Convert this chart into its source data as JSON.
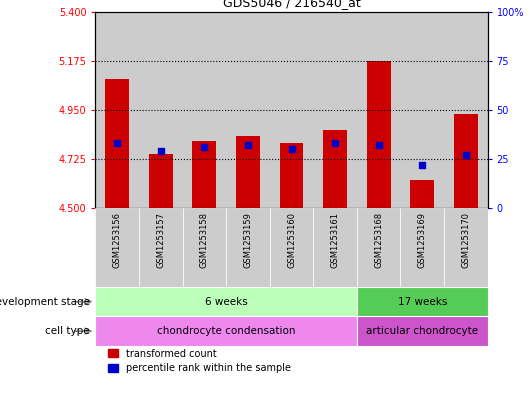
{
  "title": "GDS5046 / 216540_at",
  "samples": [
    "GSM1253156",
    "GSM1253157",
    "GSM1253158",
    "GSM1253159",
    "GSM1253160",
    "GSM1253161",
    "GSM1253168",
    "GSM1253169",
    "GSM1253170"
  ],
  "transformed_count": [
    5.09,
    4.75,
    4.81,
    4.83,
    4.8,
    4.86,
    5.175,
    4.63,
    4.93
  ],
  "percentile_rank": [
    33,
    29,
    31,
    32,
    30,
    33,
    32,
    22,
    27
  ],
  "ylim_left": [
    4.5,
    5.4
  ],
  "ylim_right": [
    0,
    100
  ],
  "yticks_left": [
    4.5,
    4.725,
    4.95,
    5.175,
    5.4
  ],
  "yticks_right": [
    0,
    25,
    50,
    75,
    100
  ],
  "ytick_labels_right": [
    "0",
    "25",
    "50",
    "75",
    "100%"
  ],
  "hlines": [
    4.725,
    4.95,
    5.175
  ],
  "bar_color": "#cc0000",
  "dot_color": "#0000cc",
  "bar_bottom": 4.5,
  "development_stage_groups": [
    {
      "label": "6 weeks",
      "start": 0,
      "end": 6,
      "color": "#bbffbb"
    },
    {
      "label": "17 weeks",
      "start": 6,
      "end": 9,
      "color": "#55cc55"
    }
  ],
  "cell_type_groups": [
    {
      "label": "chondrocyte condensation",
      "start": 0,
      "end": 6,
      "color": "#ee88ee"
    },
    {
      "label": "articular chondrocyte",
      "start": 6,
      "end": 9,
      "color": "#cc55cc"
    }
  ],
  "left_label_dev": "development stage",
  "left_label_cell": "cell type",
  "legend_items": [
    {
      "color": "#cc0000",
      "label": "transformed count"
    },
    {
      "color": "#0000cc",
      "label": "percentile rank within the sample"
    }
  ],
  "bar_width": 0.55,
  "dot_size": 25,
  "col_bg_color": "#cccccc",
  "plot_bg_color": "#ffffff"
}
